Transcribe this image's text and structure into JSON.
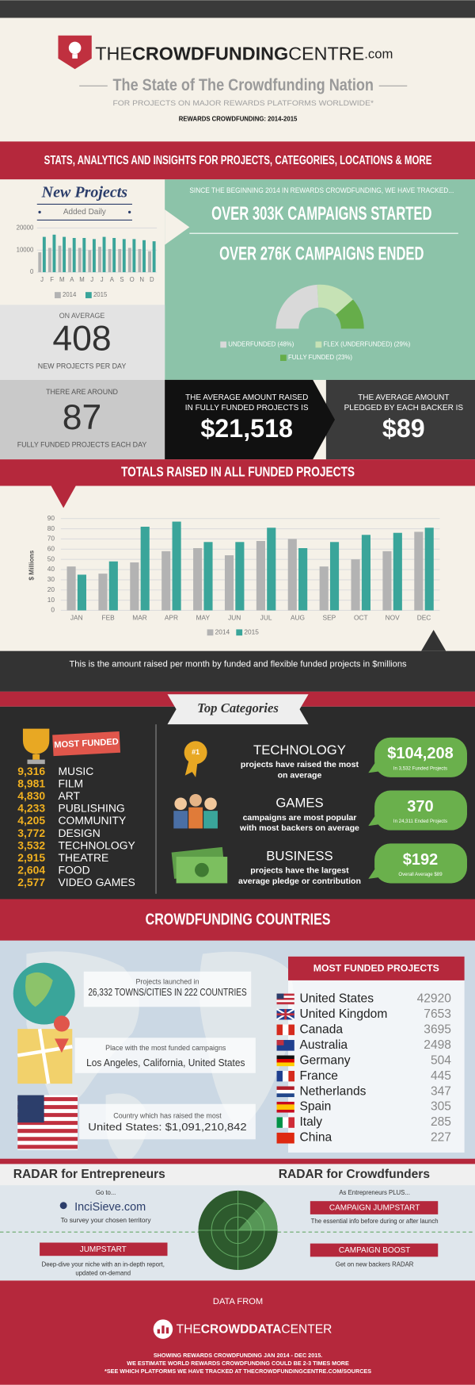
{
  "header": {
    "brand": [
      "THE",
      "CROWDFUNDING",
      "CENTRE",
      ".com"
    ],
    "title": "The State of The Crowdfunding Nation",
    "subtitle": "FOR PROJECTS ON MAJOR REWARDS PLATFORMS WORLDWIDE*",
    "period": "REWARDS CROWDFUNDING: 2014-2015"
  },
  "banner_stats": "STATS, ANALYTICS AND INSIGHTS FOR PROJECTS, CATEGORIES, LOCATIONS & MORE",
  "new_projects": {
    "title": "New Projects",
    "subtitle": "Added Daily"
  },
  "tracked": {
    "intro": "SINCE THE BEGINNING 2014 IN REWARDS CROWDFUNDING, WE HAVE TRACKED...",
    "started": "OVER 303K CAMPAIGNS STARTED",
    "ended": "OVER 276K CAMPAIGNS ENDED"
  },
  "average_new": {
    "pre": "ON AVERAGE",
    "value": "408",
    "post": "NEW PROJECTS PER DAY"
  },
  "funded_daily": {
    "pre": "THERE ARE AROUND",
    "value": "87",
    "post": "FULLY FUNDED PROJECTS EACH DAY"
  },
  "avg_raised": {
    "lines": [
      "THE AVERAGE AMOUNT RAISED",
      "IN FULLY FUNDED PROJECTS IS"
    ],
    "value": "$21,518"
  },
  "avg_pledge": {
    "lines": [
      "THE AVERAGE AMOUNT",
      "PLEDGED BY EACH BACKER IS"
    ],
    "value": "$89"
  },
  "banner_totals": "TOTALS RAISED IN ALL FUNDED PROJECTS",
  "totals_note": "This is the amount raised per month by funded and flexible funded projects in $millions",
  "chart_data": [
    {
      "type": "bar",
      "categories": [
        "J",
        "F",
        "M",
        "A",
        "M",
        "J",
        "J",
        "A",
        "S",
        "O",
        "N",
        "D"
      ],
      "series": [
        {
          "name": "2014",
          "color": "#b3b3b3",
          "values": [
            9000,
            11000,
            12000,
            11000,
            11000,
            10000,
            11500,
            10500,
            10500,
            11000,
            10500,
            9500
          ]
        },
        {
          "name": "2015",
          "color": "#3aa59a",
          "values": [
            16000,
            17000,
            16000,
            15500,
            15500,
            15000,
            16000,
            15500,
            15000,
            15000,
            14500,
            14000
          ]
        }
      ],
      "ylim": [
        0,
        20000
      ],
      "yticks": [
        0,
        10000,
        20000
      ],
      "grid": true
    },
    {
      "type": "donut",
      "values": [
        48,
        29,
        23
      ],
      "value_labels": [
        "UNDERFUNDED (48%)",
        "FLEX (UNDERFUNDED) (29%)",
        "FULLY FUNDED (23%)"
      ],
      "colors": [
        "#d9d9d9",
        "#c6e2b5",
        "#66ad4a"
      ]
    },
    {
      "type": "bar",
      "y_label": "$ Millions",
      "categories": [
        "JAN",
        "FEB",
        "MAR",
        "APR",
        "MAY",
        "JUN",
        "JUL",
        "AUG",
        "SEP",
        "OCT",
        "NOV",
        "DEC"
      ],
      "series": [
        {
          "name": "2014",
          "color": "#b3b3b3",
          "values": [
            43,
            36,
            47,
            58,
            61,
            54,
            68,
            70,
            43,
            50,
            58,
            77
          ]
        },
        {
          "name": "2015",
          "color": "#3aa59a",
          "values": [
            35,
            48,
            82,
            87,
            67,
            67,
            81,
            61,
            67,
            74,
            76,
            81
          ]
        }
      ],
      "ylim": [
        0,
        90
      ],
      "yticks": [
        0,
        10,
        20,
        30,
        40,
        50,
        60,
        70,
        80,
        90
      ],
      "grid": true
    }
  ],
  "top_categories": {
    "title": "Top Categories",
    "most_funded": "MOST FUNDED",
    "items": [
      {
        "count": "9,316",
        "name": "MUSIC"
      },
      {
        "count": "8,981",
        "name": "FILM"
      },
      {
        "count": "4,830",
        "name": "ART"
      },
      {
        "count": "4,233",
        "name": "PUBLISHING"
      },
      {
        "count": "4,205",
        "name": "COMMUNITY"
      },
      {
        "count": "3,772",
        "name": "DESIGN"
      },
      {
        "count": "3,532",
        "name": "TECHNOLOGY"
      },
      {
        "count": "2,915",
        "name": "THEATRE"
      },
      {
        "count": "2,604",
        "name": "FOOD"
      },
      {
        "count": "2,577",
        "name": "VIDEO GAMES"
      }
    ],
    "badge": "#1",
    "highlights": [
      {
        "name": "TECHNOLOGY",
        "lines": [
          "projects have raised the most",
          "on average"
        ],
        "value": "$104,208",
        "note": "In 3,532 Funded Projects"
      },
      {
        "name": "GAMES",
        "lines": [
          "campaigns are most popular",
          "with most backers on average"
        ],
        "value": "370",
        "note": "In 24,311 Ended Projects"
      },
      {
        "name": "BUSINESS",
        "lines": [
          "projects have the largest",
          "average pledge or contribution"
        ],
        "value": "$192",
        "note": "Overall Average $89"
      }
    ]
  },
  "countries": {
    "title": "CROWDFUNDING COUNTRIES",
    "facts": [
      {
        "label": "Projects launched in",
        "value": "26,332 TOWNS/CITIES IN 222 COUNTRIES"
      },
      {
        "label": "Place with the most funded campaigns",
        "value": "Los Angeles, California, United States"
      },
      {
        "label": "Country which has raised the most",
        "value": "United States: $1,091,210,842"
      }
    ],
    "table_title": "MOST FUNDED PROJECTS",
    "rows": [
      {
        "name": "United States",
        "count": "42920"
      },
      {
        "name": "United Kingdom",
        "count": "7653"
      },
      {
        "name": "Canada",
        "count": "3695"
      },
      {
        "name": "Australia",
        "count": "2498"
      },
      {
        "name": "Germany",
        "count": "504"
      },
      {
        "name": "France",
        "count": "445"
      },
      {
        "name": "Netherlands",
        "count": "347"
      },
      {
        "name": "Spain",
        "count": "305"
      },
      {
        "name": "Italy",
        "count": "285"
      },
      {
        "name": "China",
        "count": "227"
      }
    ]
  },
  "radar": {
    "left_title": "RADAR  for Entrepreneurs",
    "go_to": "Go to...",
    "site": "InciSieve.com",
    "survey": "To survey your chosen territory",
    "jumpstart": "JUMPSTART",
    "jumpstart_lines": [
      "Deep-dive your niche with an in-depth report,",
      "updated on-demand"
    ],
    "right_title": "RADAR for Crowdfunders",
    "plus": "As Entrepreneurs PLUS...",
    "campaign_jumpstart": "CAMPAIGN JUMPSTART",
    "cj_desc": "The essential info before during or after launch",
    "campaign_boost": "CAMPAIGN BOOST",
    "cb_desc": "Get on new backers RADAR"
  },
  "footer": {
    "data_from": "DATA FROM",
    "brand": [
      "THE",
      "CROWDDATA",
      "CENTER"
    ],
    "notes": [
      "SHOWING REWARDS CROWDFUNDING JAN 2014 - DEC 2015.",
      "WE ESTIMATE WORLD REWARDS CROWDFUNDING COULD BE 2-3 TIMES MORE",
      "*SEE WHICH PLATFORMS WE HAVE TRACKED AT THECROWDFUNDINGCENTRE.COM/SOURCES"
    ]
  }
}
